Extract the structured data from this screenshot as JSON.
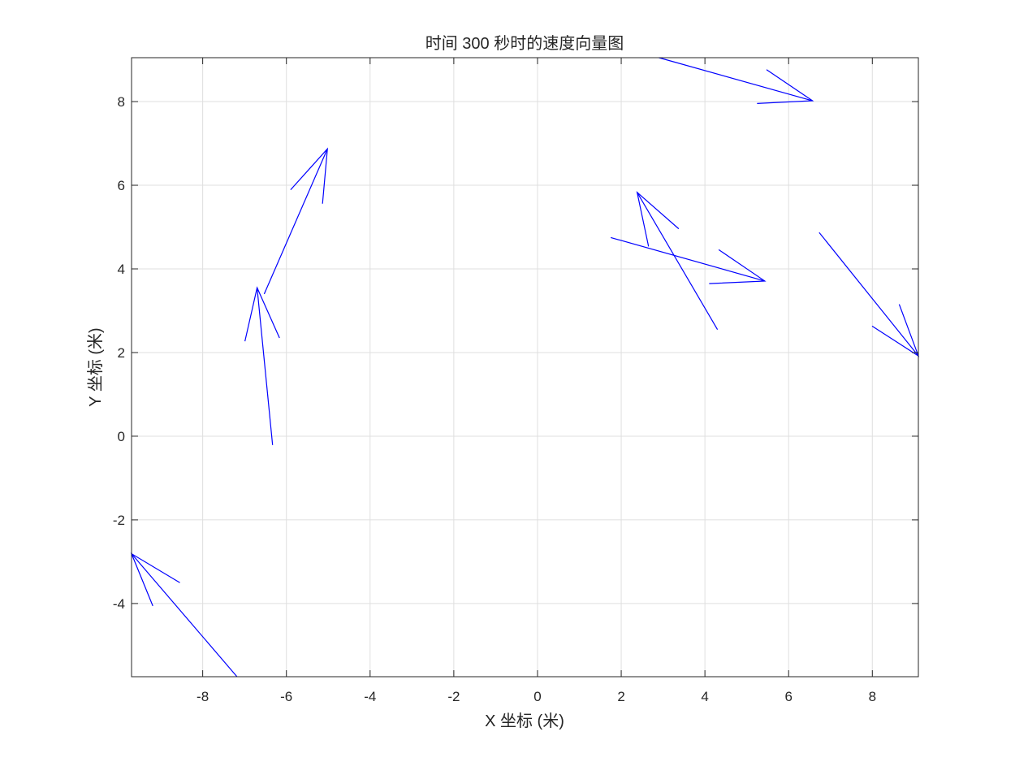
{
  "chart_data": {
    "type": "quiver",
    "title": "时间 300 秒时的速度向量图",
    "xlabel": "X 坐标 (米)",
    "ylabel": "Y 坐标 (米)",
    "xlim": [
      -9.7,
      9.1
    ],
    "ylim": [
      -5.75,
      9.05
    ],
    "xticks": [
      -8,
      -6,
      -4,
      -2,
      0,
      2,
      4,
      6,
      8
    ],
    "yticks": [
      -4,
      -2,
      0,
      2,
      4,
      6,
      8
    ],
    "grid": true,
    "color": "#0000ff",
    "vectors": [
      {
        "x": -6.33,
        "y": -0.21,
        "u": -0.37,
        "v": 3.76
      },
      {
        "x": -6.53,
        "y": 3.4,
        "u": 1.51,
        "v": 3.47
      },
      {
        "x": -7.18,
        "y": -5.75,
        "u": -2.52,
        "v": 2.94
      },
      {
        "x": 1.75,
        "y": 4.75,
        "u": 3.68,
        "v": -1.04
      },
      {
        "x": 4.3,
        "y": 2.55,
        "u": -1.92,
        "v": 3.28
      },
      {
        "x": 2.9,
        "y": 9.05,
        "u": 3.67,
        "v": -1.03
      },
      {
        "x": 6.73,
        "y": 4.87,
        "u": 2.37,
        "v": -2.95
      }
    ]
  }
}
